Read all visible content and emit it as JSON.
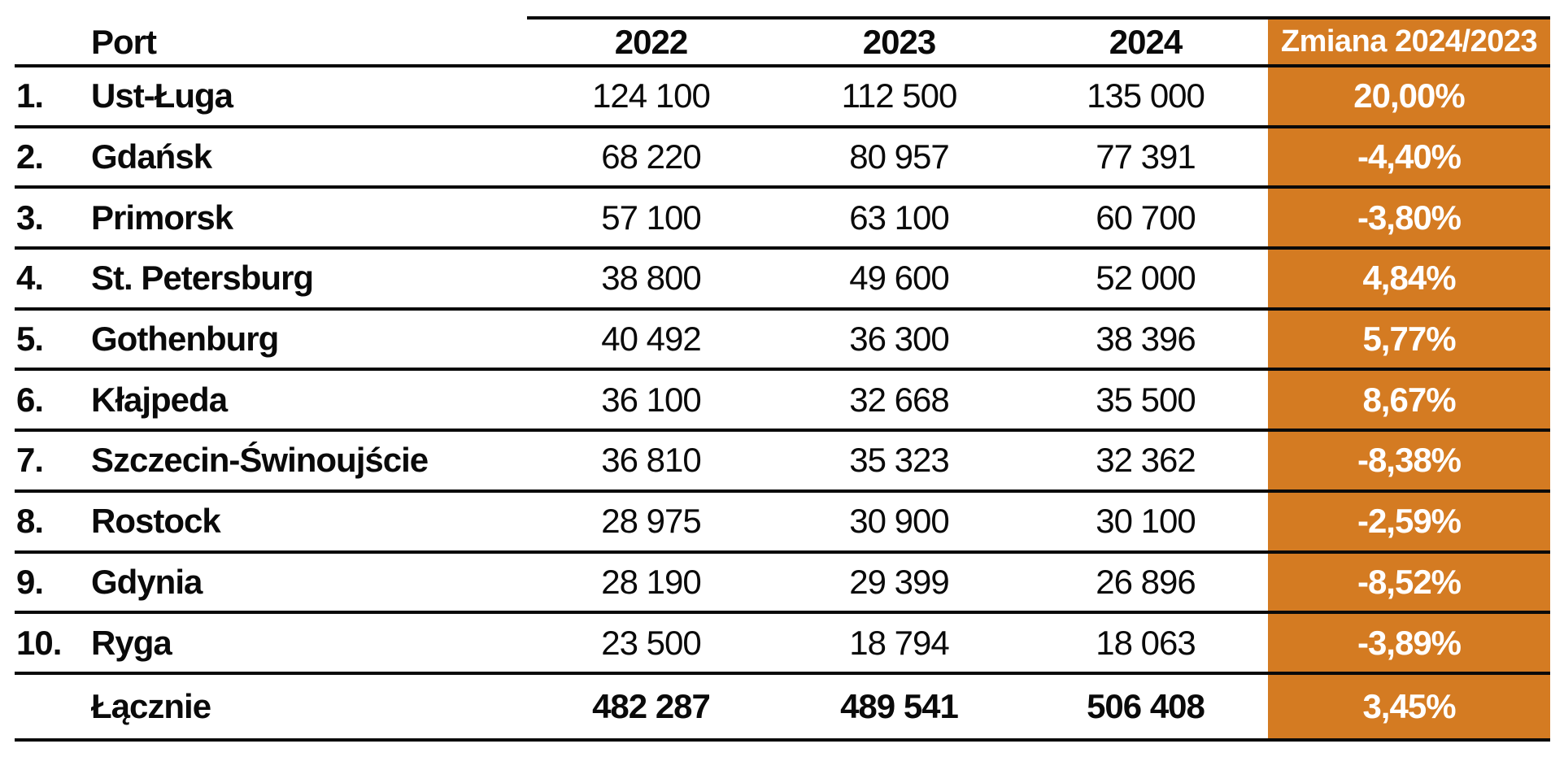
{
  "accent_color": "#D47B22",
  "text_color": "#0a0a0a",
  "table": {
    "columns": {
      "rank": "",
      "port": "Port",
      "y2022": "2022",
      "y2023": "2023",
      "y2024": "2024",
      "change": "Zmiana 2024/2023"
    },
    "rows": [
      {
        "rank": "1.",
        "port": "Ust-Ługa",
        "y2022": "124 100",
        "y2023": "112 500",
        "y2024": "135 000",
        "change": "20,00%"
      },
      {
        "rank": "2.",
        "port": "Gdańsk",
        "y2022": "68 220",
        "y2023": "80 957",
        "y2024": "77 391",
        "change": "-4,40%"
      },
      {
        "rank": "3.",
        "port": "Primorsk",
        "y2022": "57 100",
        "y2023": "63 100",
        "y2024": "60 700",
        "change": "-3,80%"
      },
      {
        "rank": "4.",
        "port": "St. Petersburg",
        "y2022": "38 800",
        "y2023": "49 600",
        "y2024": "52 000",
        "change": "4,84%"
      },
      {
        "rank": "5.",
        "port": "Gothenburg",
        "y2022": "40 492",
        "y2023": "36 300",
        "y2024": "38 396",
        "change": "5,77%"
      },
      {
        "rank": "6.",
        "port": "Kłajpeda",
        "y2022": "36 100",
        "y2023": "32 668",
        "y2024": "35 500",
        "change": "8,67%"
      },
      {
        "rank": "7.",
        "port": "Szczecin-Świnoujście",
        "y2022": "36 810",
        "y2023": "35 323",
        "y2024": "32 362",
        "change": "-8,38%"
      },
      {
        "rank": "8.",
        "port": "Rostock",
        "y2022": "28 975",
        "y2023": "30 900",
        "y2024": "30 100",
        "change": "-2,59%"
      },
      {
        "rank": "9.",
        "port": "Gdynia",
        "y2022": "28 190",
        "y2023": "29 399",
        "y2024": "26 896",
        "change": "-8,52%"
      },
      {
        "rank": "10.",
        "port": "Ryga",
        "y2022": "23 500",
        "y2023": "18 794",
        "y2024": "18 063",
        "change": "-3,89%"
      }
    ],
    "total": {
      "rank": "",
      "port": "Łącznie",
      "y2022": "482 287",
      "y2023": "489 541",
      "y2024": "506 408",
      "change": "3,45%"
    }
  },
  "chart_data": {
    "type": "table",
    "columns": [
      "Port",
      "2022",
      "2023",
      "2024",
      "Zmiana 2024/2023"
    ],
    "rows": [
      [
        "Ust-Ługa",
        124100,
        112500,
        135000,
        "20,00%"
      ],
      [
        "Gdańsk",
        68220,
        80957,
        77391,
        "-4,40%"
      ],
      [
        "Primorsk",
        57100,
        63100,
        60700,
        "-3,80%"
      ],
      [
        "St. Petersburg",
        38800,
        49600,
        52000,
        "4,84%"
      ],
      [
        "Gothenburg",
        40492,
        36300,
        38396,
        "5,77%"
      ],
      [
        "Kłajpeda",
        36100,
        32668,
        35500,
        "8,67%"
      ],
      [
        "Szczecin-Świnoujście",
        36810,
        35323,
        32362,
        "-8,38%"
      ],
      [
        "Rostock",
        28975,
        30900,
        30100,
        "-2,59%"
      ],
      [
        "Gdynia",
        28190,
        29399,
        26896,
        "-8,52%"
      ],
      [
        "Ryga",
        23500,
        18794,
        18063,
        "-3,89%"
      ]
    ],
    "total_row": [
      "Łącznie",
      482287,
      489541,
      506408,
      "3,45%"
    ],
    "notes": "change column = Zmiana 2024/2023, white bold text on orange background"
  }
}
